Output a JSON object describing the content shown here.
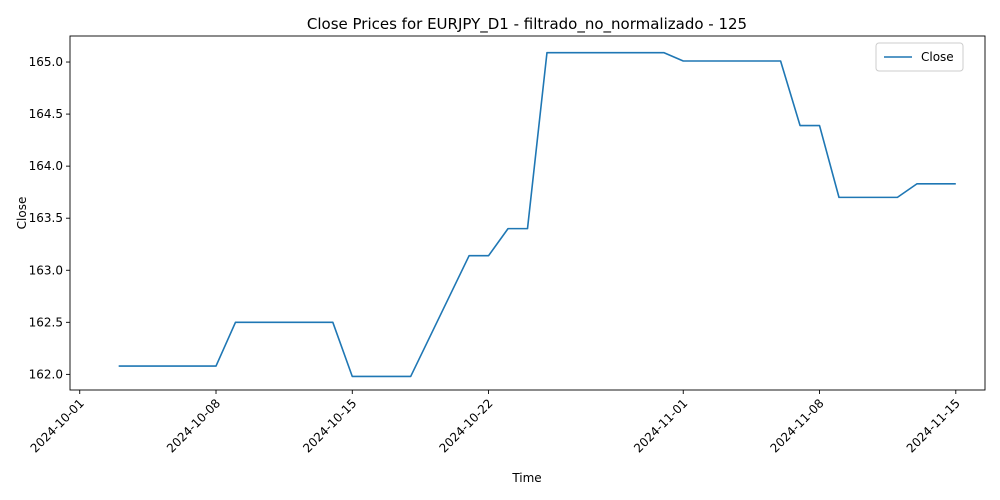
{
  "chart_data": {
    "type": "line",
    "title": "Close Prices for EURJPY_D1 - filtrado_no_normalizado - 125",
    "xlabel": "Time",
    "ylabel": "Close",
    "x_ticks": [
      "2024-10-01",
      "2024-10-08",
      "2024-10-15",
      "2024-10-22",
      "2024-11-01",
      "2024-11-08",
      "2024-11-15"
    ],
    "y_ticks": [
      "162.0",
      "162.5",
      "163.0",
      "163.5",
      "164.0",
      "164.5",
      "165.0"
    ],
    "xlim": [
      "2024-09-30",
      "2024-11-16"
    ],
    "ylim": [
      161.85,
      165.25
    ],
    "grid": false,
    "legend_position": "top-right",
    "series": [
      {
        "name": "Close",
        "color": "#1f77b4",
        "points": [
          {
            "x": "2024-10-03",
            "y": 162.08
          },
          {
            "x": "2024-10-08",
            "y": 162.08
          },
          {
            "x": "2024-10-09",
            "y": 162.5
          },
          {
            "x": "2024-10-14",
            "y": 162.5
          },
          {
            "x": "2024-10-15",
            "y": 161.98
          },
          {
            "x": "2024-10-18",
            "y": 161.98
          },
          {
            "x": "2024-10-21",
            "y": 163.14
          },
          {
            "x": "2024-10-22",
            "y": 163.14
          },
          {
            "x": "2024-10-23",
            "y": 163.4
          },
          {
            "x": "2024-10-24",
            "y": 163.4
          },
          {
            "x": "2024-10-25",
            "y": 165.09
          },
          {
            "x": "2024-10-31",
            "y": 165.09
          },
          {
            "x": "2024-11-01",
            "y": 165.01
          },
          {
            "x": "2024-11-06",
            "y": 165.01
          },
          {
            "x": "2024-11-07",
            "y": 164.39
          },
          {
            "x": "2024-11-08",
            "y": 164.39
          },
          {
            "x": "2024-11-09",
            "y": 163.7
          },
          {
            "x": "2024-11-12",
            "y": 163.7
          },
          {
            "x": "2024-11-13",
            "y": 163.83
          },
          {
            "x": "2024-11-15",
            "y": 163.83
          }
        ]
      }
    ]
  }
}
